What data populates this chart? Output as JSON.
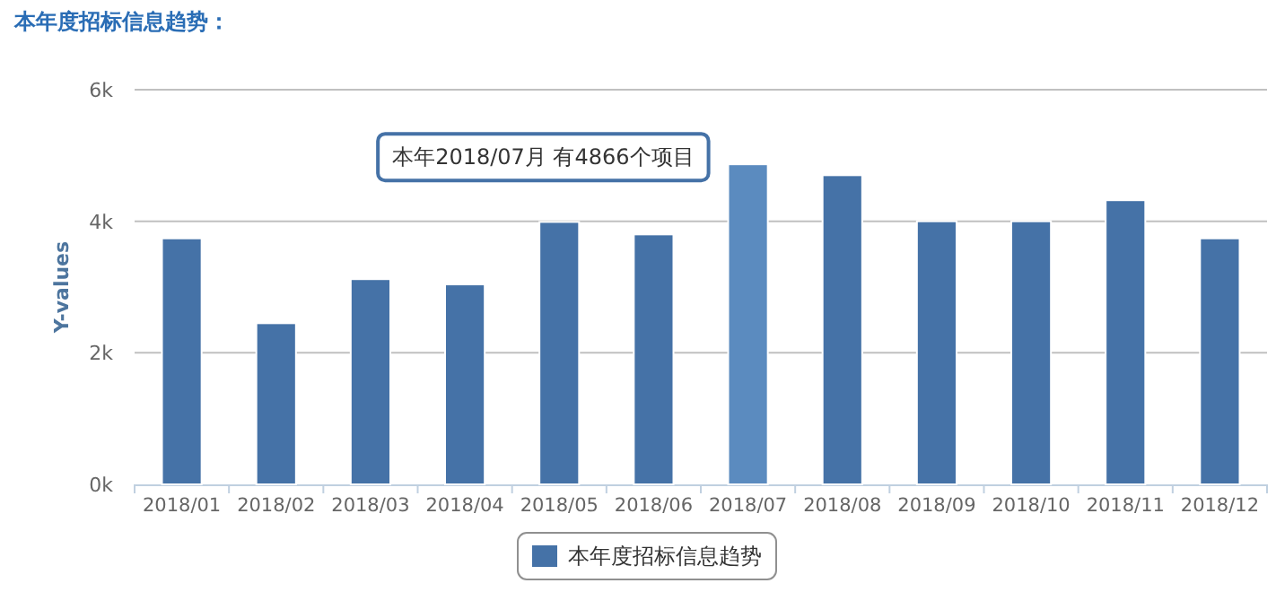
{
  "chart_data": {
    "type": "bar",
    "title": "本年度招标信息趋势：",
    "ylabel": "Y-values",
    "categories": [
      "2018/01",
      "2018/02",
      "2018/03",
      "2018/04",
      "2018/05",
      "2018/06",
      "2018/07",
      "2018/08",
      "2018/09",
      "2018/10",
      "2018/11",
      "2018/12"
    ],
    "series": [
      {
        "name": "本年度招标信息趋势",
        "color": "#4572a7",
        "colors": [
          "#4572a7",
          "#4572a7",
          "#4572a7",
          "#4572a7",
          "#4572a7",
          "#4572a7",
          "#5b8bbf",
          "#4572a7",
          "#4572a7",
          "#4572a7",
          "#4572a7",
          "#4572a7"
        ],
        "values": [
          3740,
          2450,
          3120,
          3040,
          3990,
          3800,
          4866,
          4700,
          4000,
          4000,
          4320,
          3740
        ]
      }
    ],
    "ylim": [
      0,
      6000
    ],
    "yticks": [
      {
        "value": 0,
        "label": "0k"
      },
      {
        "value": 2000,
        "label": "2k"
      },
      {
        "value": 4000,
        "label": "4k"
      },
      {
        "value": 6000,
        "label": "6k"
      }
    ],
    "grid": "y",
    "legend": "bottom",
    "annotations": [
      {
        "text": "本年2018/07月 有4866个项目",
        "x": "2018/07",
        "y": 4866
      }
    ]
  }
}
